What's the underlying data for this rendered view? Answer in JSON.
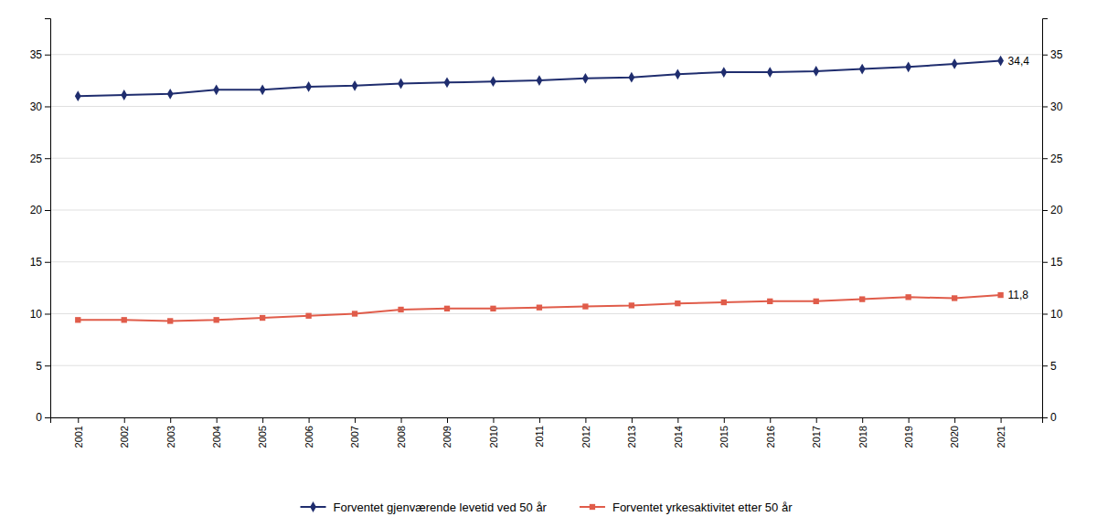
{
  "chart_data": {
    "type": "line",
    "x": [
      2001,
      2002,
      2003,
      2004,
      2005,
      2006,
      2007,
      2008,
      2009,
      2010,
      2011,
      2012,
      2013,
      2014,
      2015,
      2016,
      2017,
      2018,
      2019,
      2020,
      2021
    ],
    "xlim": [
      2000.4,
      2021.9
    ],
    "xticks": [
      2001,
      2002,
      2003,
      2004,
      2005,
      2006,
      2007,
      2008,
      2009,
      2010,
      2011,
      2012,
      2013,
      2014,
      2015,
      2016,
      2017,
      2018,
      2019,
      2020,
      2021
    ],
    "ylim": [
      0,
      38.5
    ],
    "yticks": [
      0,
      5,
      10,
      15,
      20,
      25,
      30,
      35
    ],
    "y2lim": [
      0,
      38.5
    ],
    "y2ticks": [
      0,
      5,
      10,
      15,
      20,
      25,
      30,
      35
    ],
    "grid": true,
    "legend": "bottom",
    "series": [
      {
        "name": "Forventet gjenværende levetid ved 50 år",
        "color": "#1f2d6e",
        "marker": "diamond",
        "values": [
          31.0,
          31.1,
          31.2,
          31.6,
          31.6,
          31.9,
          32.0,
          32.2,
          32.3,
          32.4,
          32.5,
          32.7,
          32.8,
          33.1,
          33.3,
          33.3,
          33.4,
          33.6,
          33.8,
          34.1,
          34.4
        ]
      },
      {
        "name": "Forventet yrkesaktivitet etter 50 år",
        "color": "#e05c4a",
        "marker": "square",
        "values": [
          9.4,
          9.4,
          9.3,
          9.4,
          9.6,
          9.8,
          10.0,
          10.4,
          10.5,
          10.5,
          10.6,
          10.7,
          10.8,
          11.0,
          11.1,
          11.2,
          11.2,
          11.4,
          11.6,
          11.5,
          11.8
        ]
      }
    ],
    "annotations": [
      {
        "text": "34,4",
        "x": 2021,
        "y": 34.4
      },
      {
        "text": "11,8",
        "x": 2021,
        "y": 11.8
      }
    ]
  }
}
